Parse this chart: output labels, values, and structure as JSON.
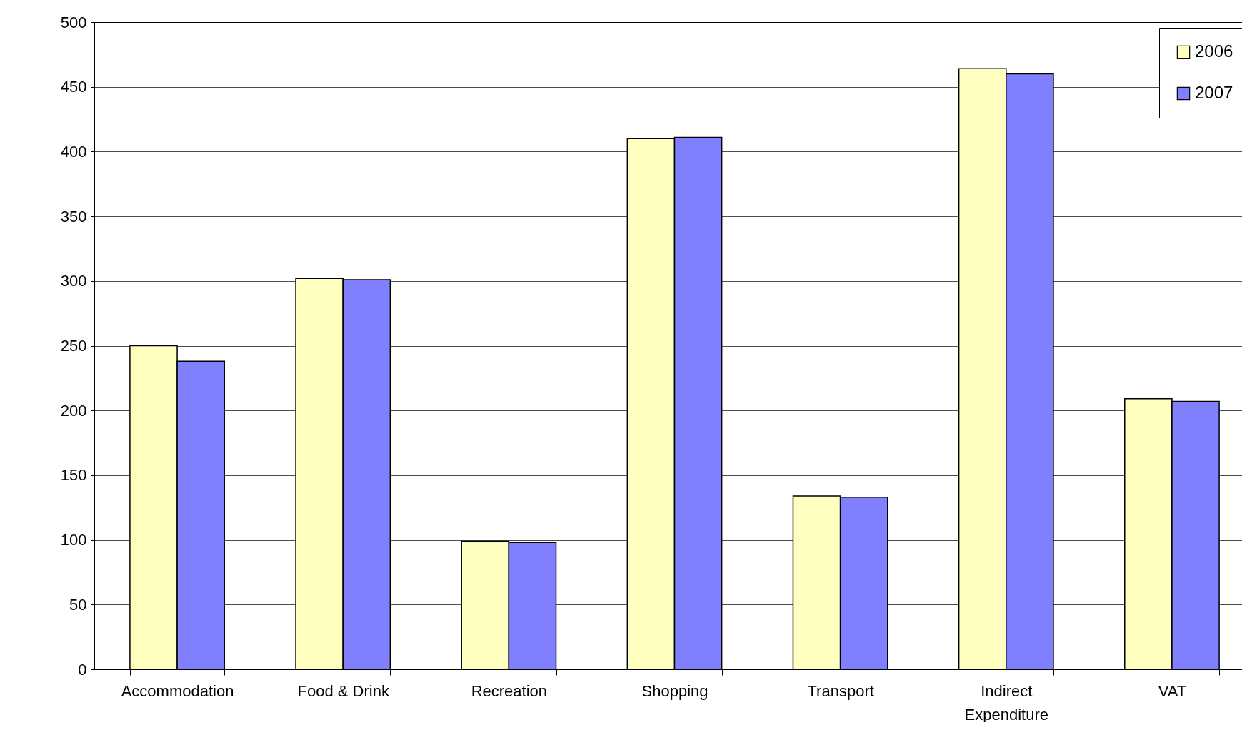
{
  "chart_data": {
    "type": "bar",
    "categories": [
      "Accommodation",
      "Food & Drink",
      "Recreation",
      "Shopping",
      "Transport",
      "Indirect Expenditure",
      "VAT"
    ],
    "series": [
      {
        "name": "2006",
        "color": "#ffffc0",
        "values": [
          250,
          302,
          99,
          410,
          134,
          464,
          209
        ]
      },
      {
        "name": "2007",
        "color": "#8080ff",
        "values": [
          238,
          301,
          98,
          411,
          133,
          460,
          207
        ]
      }
    ],
    "ylim": [
      0,
      500
    ],
    "yticks": [
      0,
      50,
      100,
      150,
      200,
      250,
      300,
      350,
      400,
      450,
      500
    ],
    "grid": "y",
    "legend": "top right"
  }
}
